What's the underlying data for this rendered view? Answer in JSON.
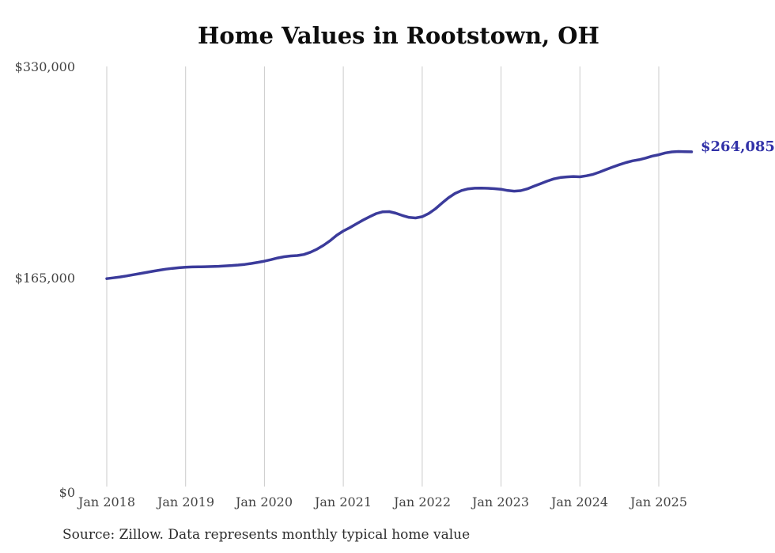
{
  "title": "Home Values in Rootstown, OH",
  "end_label": "$264,085",
  "source_note": "Source: Zillow. Data represents monthly typical home value",
  "y_axis": {
    "ticks": [
      "$330,000",
      "$165,000",
      "$0"
    ]
  },
  "x_axis": {
    "ticks": [
      "Jan 2018",
      "Jan 2019",
      "Jan 2020",
      "Jan 2021",
      "Jan 2022",
      "Jan 2023",
      "Jan 2024",
      "Jan 2025"
    ]
  },
  "colors": {
    "line": "#3b3b9b",
    "end_label": "#3232a8",
    "gridline": "#cbcbcb",
    "axis_label": "#444444",
    "title": "#0d0d0d",
    "source": "#2b2b2b"
  },
  "chart_data": {
    "type": "line",
    "title": "Home Values in Rootstown, OH",
    "frequency": "monthly",
    "unit": "USD",
    "ylim": [
      0,
      330000
    ],
    "y_tick_values": [
      0,
      165000,
      330000
    ],
    "grid": "vertical-only",
    "legend": "none",
    "source": "Zillow",
    "latest": {
      "month": "2025-06",
      "value": 264085,
      "label": "$264,085"
    },
    "x": [
      "2018-01",
      "2018-02",
      "2018-03",
      "2018-04",
      "2018-05",
      "2018-06",
      "2018-07",
      "2018-08",
      "2018-09",
      "2018-10",
      "2018-11",
      "2018-12",
      "2019-01",
      "2019-02",
      "2019-03",
      "2019-04",
      "2019-05",
      "2019-06",
      "2019-07",
      "2019-08",
      "2019-09",
      "2019-10",
      "2019-11",
      "2019-12",
      "2020-01",
      "2020-02",
      "2020-03",
      "2020-04",
      "2020-05",
      "2020-06",
      "2020-07",
      "2020-08",
      "2020-09",
      "2020-10",
      "2020-11",
      "2020-12",
      "2021-01",
      "2021-02",
      "2021-03",
      "2021-04",
      "2021-05",
      "2021-06",
      "2021-07",
      "2021-08",
      "2021-09",
      "2021-10",
      "2021-11",
      "2021-12",
      "2022-01",
      "2022-02",
      "2022-03",
      "2022-04",
      "2022-05",
      "2022-06",
      "2022-07",
      "2022-08",
      "2022-09",
      "2022-10",
      "2022-11",
      "2022-12",
      "2023-01",
      "2023-02",
      "2023-03",
      "2023-04",
      "2023-05",
      "2023-06",
      "2023-07",
      "2023-08",
      "2023-09",
      "2023-10",
      "2023-11",
      "2023-12",
      "2024-01",
      "2024-02",
      "2024-03",
      "2024-04",
      "2024-05",
      "2024-06",
      "2024-07",
      "2024-08",
      "2024-09",
      "2024-10",
      "2024-11",
      "2024-12",
      "2025-01",
      "2025-02",
      "2025-03",
      "2025-04",
      "2025-05",
      "2025-06"
    ],
    "values": [
      165200,
      165800,
      166500,
      167300,
      168200,
      169100,
      170000,
      170900,
      171800,
      172600,
      173200,
      173700,
      174100,
      174300,
      174400,
      174500,
      174600,
      174800,
      175100,
      175400,
      175800,
      176300,
      177000,
      177900,
      178800,
      180000,
      181300,
      182300,
      182900,
      183200,
      184000,
      185800,
      188200,
      191200,
      194800,
      199000,
      202300,
      205000,
      207900,
      210800,
      213500,
      215900,
      217300,
      217400,
      216200,
      214400,
      212900,
      212500,
      213500,
      216000,
      219600,
      224000,
      228200,
      231600,
      233900,
      235200,
      235700,
      235800,
      235600,
      235300,
      234900,
      233900,
      233400,
      233800,
      235200,
      237200,
      239200,
      241200,
      242900,
      244000,
      244500,
      244800,
      244600,
      245400,
      246500,
      248300,
      250300,
      252200,
      254000,
      255700,
      257000,
      257900,
      259200,
      260700,
      261800,
      263200,
      264000,
      264300,
      264200,
      264085
    ]
  }
}
